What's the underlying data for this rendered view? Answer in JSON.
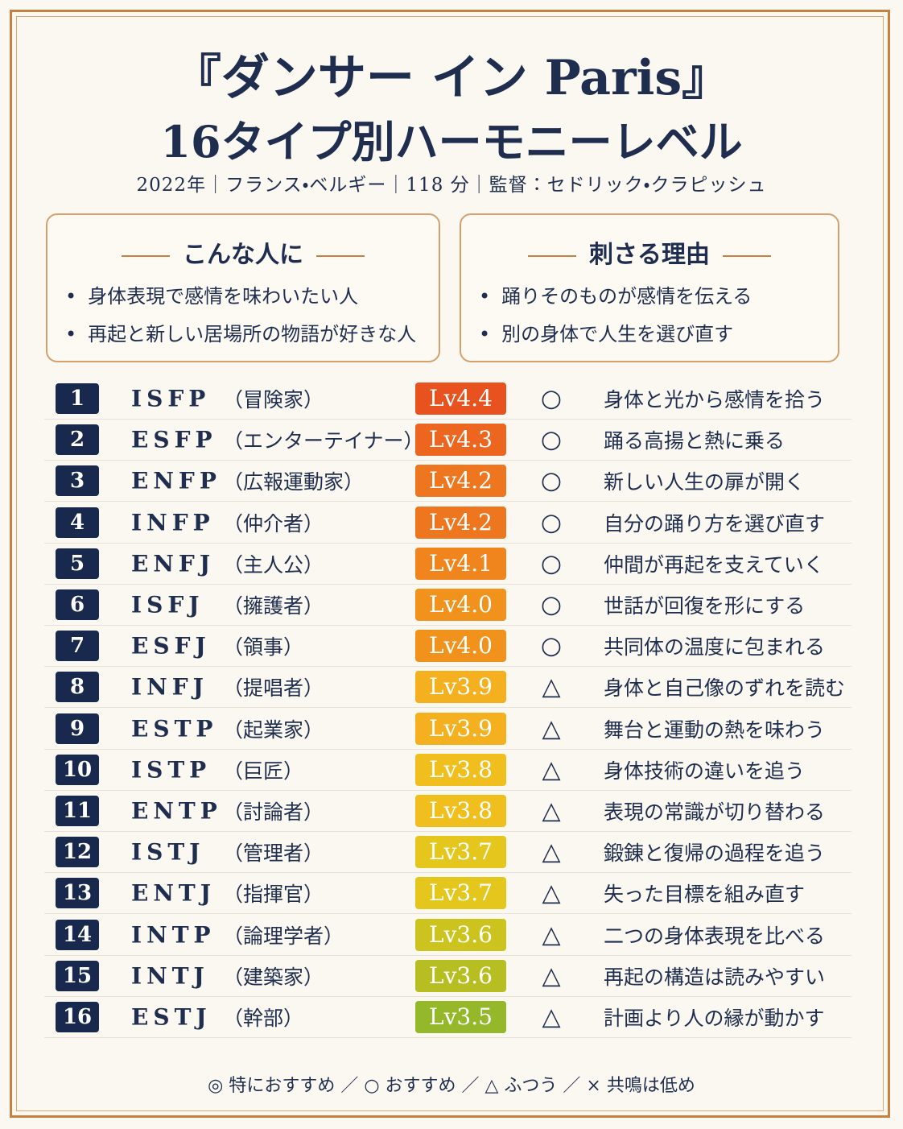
{
  "header": {
    "title_line1": "『ダンサー イン Paris』",
    "title_line2": "16タイプ別ハーモニーレベル",
    "meta": "2022年｜フランス・ベルギー｜118 分｜監督：セドリック・クラピッシュ"
  },
  "boxes": [
    {
      "heading": "こんな人に",
      "bullets": [
        "身体表現で感情を味わいたい人",
        "再起と新しい居場所の物語が好きな人"
      ]
    },
    {
      "heading": "刺さる理由",
      "bullets": [
        "踊りそのものが感情を伝える",
        "別の身体で人生を選び直す"
      ]
    }
  ],
  "table": {
    "rows": [
      {
        "rank": 1,
        "type": "ISFP",
        "role": "（冒険家）",
        "level": "Lv4.4",
        "color": "#e8521e",
        "mark": "○",
        "comment": "身体と光から感情を拾う"
      },
      {
        "rank": 2,
        "type": "ESFP",
        "role": "（エンターテイナー）",
        "level": "Lv4.3",
        "color": "#ec661f",
        "mark": "○",
        "comment": "踊る高揚と熱に乗る"
      },
      {
        "rank": 3,
        "type": "ENFP",
        "role": "（広報運動家）",
        "level": "Lv4.2",
        "color": "#ee761f",
        "mark": "○",
        "comment": "新しい人生の扉が開く"
      },
      {
        "rank": 4,
        "type": "INFP",
        "role": "（仲介者）",
        "level": "Lv4.2",
        "color": "#ee761f",
        "mark": "○",
        "comment": "自分の踊り方を選び直す"
      },
      {
        "rank": 5,
        "type": "ENFJ",
        "role": "（主人公）",
        "level": "Lv4.1",
        "color": "#f0851d",
        "mark": "○",
        "comment": "仲間が再起を支えていく"
      },
      {
        "rank": 6,
        "type": "ISFJ",
        "role": "（擁護者）",
        "level": "Lv4.0",
        "color": "#f1921c",
        "mark": "○",
        "comment": "世話が回復を形にする"
      },
      {
        "rank": 7,
        "type": "ESFJ",
        "role": "（領事）",
        "level": "Lv4.0",
        "color": "#f1921c",
        "mark": "○",
        "comment": "共同体の温度に包まれる"
      },
      {
        "rank": 8,
        "type": "INFJ",
        "role": "（提唱者）",
        "level": "Lv3.9",
        "color": "#f4b01f",
        "mark": "△",
        "comment": "身体と自己像のずれを読む"
      },
      {
        "rank": 9,
        "type": "ESTP",
        "role": "（起業家）",
        "level": "Lv3.9",
        "color": "#f4b01f",
        "mark": "△",
        "comment": "舞台と運動の熱を味わう"
      },
      {
        "rank": 10,
        "type": "ISTP",
        "role": "（巨匠）",
        "level": "Lv3.8",
        "color": "#f0bf1e",
        "mark": "△",
        "comment": "身体技術の違いを追う"
      },
      {
        "rank": 11,
        "type": "ENTP",
        "role": "（討論者）",
        "level": "Lv3.8",
        "color": "#f0bf1e",
        "mark": "△",
        "comment": "表現の常識が切り替わる"
      },
      {
        "rank": 12,
        "type": "ISTJ",
        "role": "（管理者）",
        "level": "Lv3.7",
        "color": "#e5c61c",
        "mark": "△",
        "comment": "鍛錬と復帰の過程を追う"
      },
      {
        "rank": 13,
        "type": "ENTJ",
        "role": "（指揮官）",
        "level": "Lv3.7",
        "color": "#e5c61c",
        "mark": "△",
        "comment": "失った目標を組み直す"
      },
      {
        "rank": 14,
        "type": "INTP",
        "role": "（論理学者）",
        "level": "Lv3.6",
        "color": "#cdc31e",
        "mark": "△",
        "comment": "二つの身体表現を比べる"
      },
      {
        "rank": 15,
        "type": "INTJ",
        "role": "（建築家）",
        "level": "Lv3.6",
        "color": "#b6be22",
        "mark": "△",
        "comment": "再起の構造は読みやすい"
      },
      {
        "rank": 16,
        "type": "ESTJ",
        "role": "（幹部）",
        "level": "Lv3.5",
        "color": "#94b82a",
        "mark": "△",
        "comment": "計画より人の縁が動かす"
      }
    ]
  },
  "legend": "◎ 特におすすめ ／ ○ おすすめ ／ △ ふつう ／ × 共鳴は低め"
}
